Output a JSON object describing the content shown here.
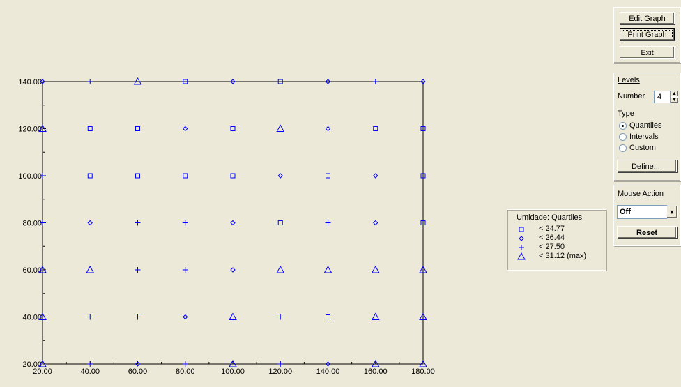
{
  "toolbar": {
    "edit_graph": "Edit Graph",
    "print_graph": "Print Graph",
    "exit": "Exit"
  },
  "levels": {
    "title": "Levels",
    "number_label": "Number",
    "number_value": "4",
    "type_label": "Type",
    "options": [
      "Quantiles",
      "Intervals",
      "Custom"
    ],
    "selected": "Quantiles",
    "define_button": "Define...."
  },
  "mouse_action": {
    "title": "Mouse Action",
    "value": "Off",
    "reset_button": "Reset"
  },
  "legend": {
    "title": "Umidade: Quartiles",
    "entries": [
      {
        "symbol": "square",
        "label": "< 24.77"
      },
      {
        "symbol": "diamond",
        "label": "< 26.44"
      },
      {
        "symbol": "plus",
        "label": "< 27.50"
      },
      {
        "symbol": "triangle",
        "label": "< 31.12 (max)"
      }
    ]
  },
  "colors": {
    "marker": "#0000FF",
    "background": "#ECE9D8",
    "axis": "#000000"
  },
  "chart_data": {
    "type": "scatter",
    "x_ticks": [
      "20.00",
      "40.00",
      "60.00",
      "80.00",
      "100.00",
      "120.00",
      "140.00",
      "160.00",
      "180.00"
    ],
    "y_ticks": [
      "20.00",
      "40.00",
      "60.00",
      "80.00",
      "100.00",
      "120.00",
      "140.00"
    ],
    "xlim": [
      20,
      180
    ],
    "ylim": [
      20,
      140
    ],
    "grid": false,
    "points": [
      {
        "x": 20,
        "y": 140,
        "s": "diamond"
      },
      {
        "x": 40,
        "y": 140,
        "s": "plus"
      },
      {
        "x": 60,
        "y": 140,
        "s": "triangle"
      },
      {
        "x": 80,
        "y": 140,
        "s": "square"
      },
      {
        "x": 100,
        "y": 140,
        "s": "diamond"
      },
      {
        "x": 120,
        "y": 140,
        "s": "square"
      },
      {
        "x": 140,
        "y": 140,
        "s": "diamond"
      },
      {
        "x": 160,
        "y": 140,
        "s": "plus"
      },
      {
        "x": 180,
        "y": 140,
        "s": "diamond"
      },
      {
        "x": 20,
        "y": 120,
        "s": "triangle"
      },
      {
        "x": 40,
        "y": 120,
        "s": "square"
      },
      {
        "x": 60,
        "y": 120,
        "s": "square"
      },
      {
        "x": 80,
        "y": 120,
        "s": "diamond"
      },
      {
        "x": 100,
        "y": 120,
        "s": "square"
      },
      {
        "x": 120,
        "y": 120,
        "s": "triangle"
      },
      {
        "x": 140,
        "y": 120,
        "s": "diamond"
      },
      {
        "x": 160,
        "y": 120,
        "s": "square"
      },
      {
        "x": 180,
        "y": 120,
        "s": "square"
      },
      {
        "x": 20,
        "y": 100,
        "s": "plus"
      },
      {
        "x": 40,
        "y": 100,
        "s": "square"
      },
      {
        "x": 60,
        "y": 100,
        "s": "square"
      },
      {
        "x": 80,
        "y": 100,
        "s": "square"
      },
      {
        "x": 100,
        "y": 100,
        "s": "square"
      },
      {
        "x": 120,
        "y": 100,
        "s": "diamond"
      },
      {
        "x": 140,
        "y": 100,
        "s": "square"
      },
      {
        "x": 160,
        "y": 100,
        "s": "diamond"
      },
      {
        "x": 180,
        "y": 100,
        "s": "square"
      },
      {
        "x": 20,
        "y": 80,
        "s": "plus"
      },
      {
        "x": 40,
        "y": 80,
        "s": "diamond"
      },
      {
        "x": 60,
        "y": 80,
        "s": "plus"
      },
      {
        "x": 80,
        "y": 80,
        "s": "plus"
      },
      {
        "x": 100,
        "y": 80,
        "s": "diamond"
      },
      {
        "x": 120,
        "y": 80,
        "s": "square"
      },
      {
        "x": 140,
        "y": 80,
        "s": "plus"
      },
      {
        "x": 160,
        "y": 80,
        "s": "diamond"
      },
      {
        "x": 180,
        "y": 80,
        "s": "square"
      },
      {
        "x": 20,
        "y": 60,
        "s": "triangle"
      },
      {
        "x": 40,
        "y": 60,
        "s": "triangle"
      },
      {
        "x": 60,
        "y": 60,
        "s": "plus"
      },
      {
        "x": 80,
        "y": 60,
        "s": "plus"
      },
      {
        "x": 100,
        "y": 60,
        "s": "diamond"
      },
      {
        "x": 120,
        "y": 60,
        "s": "triangle"
      },
      {
        "x": 140,
        "y": 60,
        "s": "triangle"
      },
      {
        "x": 160,
        "y": 60,
        "s": "triangle"
      },
      {
        "x": 180,
        "y": 60,
        "s": "triangle"
      },
      {
        "x": 20,
        "y": 40,
        "s": "triangle"
      },
      {
        "x": 40,
        "y": 40,
        "s": "plus"
      },
      {
        "x": 60,
        "y": 40,
        "s": "plus"
      },
      {
        "x": 80,
        "y": 40,
        "s": "diamond"
      },
      {
        "x": 100,
        "y": 40,
        "s": "triangle"
      },
      {
        "x": 120,
        "y": 40,
        "s": "plus"
      },
      {
        "x": 140,
        "y": 40,
        "s": "square"
      },
      {
        "x": 160,
        "y": 40,
        "s": "triangle"
      },
      {
        "x": 180,
        "y": 40,
        "s": "triangle"
      },
      {
        "x": 20,
        "y": 20,
        "s": "triangle"
      },
      {
        "x": 40,
        "y": 20,
        "s": "plus"
      },
      {
        "x": 60,
        "y": 20,
        "s": "diamond"
      },
      {
        "x": 80,
        "y": 20,
        "s": "plus"
      },
      {
        "x": 100,
        "y": 20,
        "s": "triangle"
      },
      {
        "x": 120,
        "y": 20,
        "s": "plus"
      },
      {
        "x": 140,
        "y": 20,
        "s": "diamond"
      },
      {
        "x": 160,
        "y": 20,
        "s": "triangle"
      },
      {
        "x": 180,
        "y": 20,
        "s": "triangle"
      }
    ]
  }
}
